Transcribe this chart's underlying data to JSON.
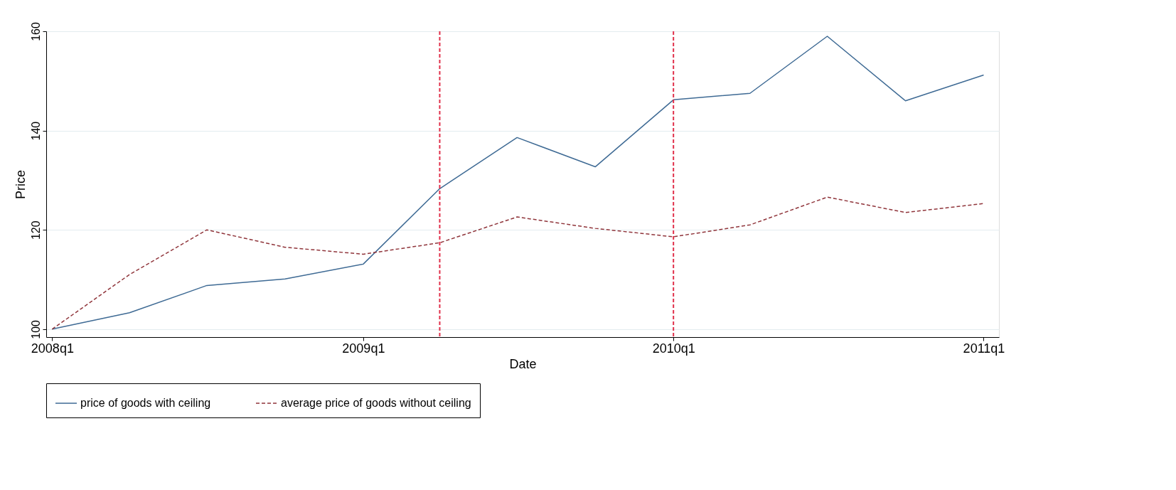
{
  "chart_data": {
    "type": "line",
    "xlabel": "Date",
    "ylabel": "Price",
    "x": [
      "2008-01",
      "2008-04",
      "2008-07",
      "2008-10",
      "2009-01",
      "2009-04",
      "2009-07",
      "2009-10",
      "2010-01",
      "2010-04",
      "2010-07",
      "2010-10",
      "2011-01"
    ],
    "series": [
      {
        "name": "price of goods with ceiling",
        "color": "#3e6a94",
        "line_style": "solid",
        "values": [
          100,
          103.3,
          108.8,
          110.1,
          113.1,
          128.3,
          138.6,
          132.7,
          146.2,
          147.5,
          159.0,
          146.0,
          151.2
        ]
      },
      {
        "name": "average price of goods without ceiling",
        "color": "#90353b",
        "line_style": "dashed",
        "values": [
          100,
          111.0,
          120.0,
          116.5,
          115.1,
          117.4,
          122.6,
          120.3,
          118.6,
          121.0,
          126.6,
          123.5,
          125.3
        ]
      }
    ],
    "xlim": [
      "2007-12-25",
      "2011-01-19"
    ],
    "ylim": [
      98.4,
      160
    ],
    "xticks": [
      {
        "value": "2008-01",
        "label": "2008q1"
      },
      {
        "value": "2009-01",
        "label": "2009q1"
      },
      {
        "value": "2010-01",
        "label": "2010q1"
      },
      {
        "value": "2011-01",
        "label": "2011q1"
      }
    ],
    "yticks": [
      100,
      120,
      140,
      160
    ],
    "ref_lines": [
      {
        "axis": "x",
        "value": "2009-04",
        "color": "#e0304a",
        "line_style": "dashed"
      },
      {
        "axis": "x",
        "value": "2010-01",
        "color": "#e0304a",
        "line_style": "dashed"
      }
    ],
    "grid": "y",
    "legend": "bottom",
    "marker": "none"
  }
}
